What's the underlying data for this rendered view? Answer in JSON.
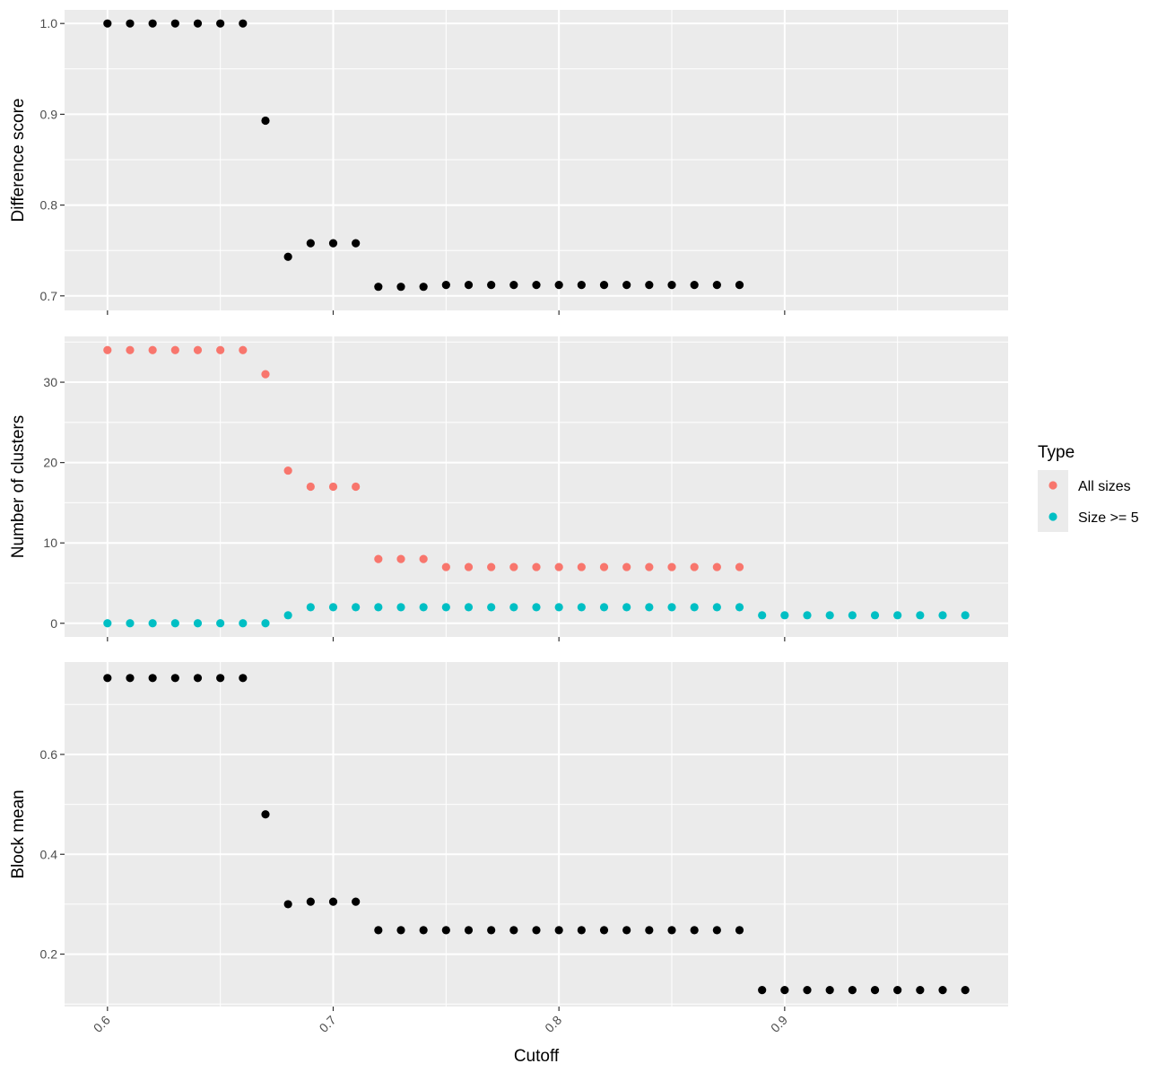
{
  "chart_data": {
    "type": "scatter",
    "xlabel": "Cutoff",
    "xlim": [
      0.581,
      0.999
    ],
    "x_ticks": [
      0.6,
      0.7,
      0.8,
      0.9
    ],
    "x_tick_labels": [
      "0.6",
      "0.7",
      "0.8",
      "0.9"
    ],
    "grid": true,
    "legend": {
      "title": "Type",
      "placement": "right",
      "entries": [
        {
          "name": "All sizes",
          "color": "#F8766D"
        },
        {
          "name": "Size >= 5",
          "color": "#00BFC4"
        }
      ]
    },
    "panels": [
      {
        "id": "difference-score",
        "ylabel": "Difference score",
        "ylim": [
          0.684,
          1.015
        ],
        "y_ticks": [
          0.7,
          0.8,
          0.9,
          1.0
        ],
        "y_tick_labels": [
          "0.7",
          "0.8",
          "0.9",
          "1.0"
        ],
        "series": [
          {
            "color": "#000000",
            "x": [
              0.6,
              0.61,
              0.62,
              0.63,
              0.64,
              0.65,
              0.66,
              0.67,
              0.68,
              0.69,
              0.7,
              0.71,
              0.72,
              0.73,
              0.74,
              0.75,
              0.76,
              0.77,
              0.78,
              0.79,
              0.8,
              0.81,
              0.82,
              0.83,
              0.84,
              0.85,
              0.86,
              0.87,
              0.88
            ],
            "y": [
              1.0,
              1.0,
              1.0,
              1.0,
              1.0,
              1.0,
              1.0,
              0.893,
              0.743,
              0.758,
              0.758,
              0.758,
              0.71,
              0.71,
              0.71,
              0.712,
              0.712,
              0.712,
              0.712,
              0.712,
              0.712,
              0.712,
              0.712,
              0.712,
              0.712,
              0.712,
              0.712,
              0.712,
              0.712
            ]
          }
        ]
      },
      {
        "id": "number-of-clusters",
        "ylabel": "Number of clusters",
        "ylim": [
          -1.7,
          35.7
        ],
        "y_ticks": [
          0,
          10,
          20,
          30
        ],
        "y_tick_labels": [
          "0",
          "10",
          "20",
          "30"
        ],
        "series": [
          {
            "name": "All sizes",
            "color": "#F8766D",
            "x": [
              0.6,
              0.61,
              0.62,
              0.63,
              0.64,
              0.65,
              0.66,
              0.67,
              0.68,
              0.69,
              0.7,
              0.71,
              0.72,
              0.73,
              0.74,
              0.75,
              0.76,
              0.77,
              0.78,
              0.79,
              0.8,
              0.81,
              0.82,
              0.83,
              0.84,
              0.85,
              0.86,
              0.87,
              0.88
            ],
            "y": [
              34,
              34,
              34,
              34,
              34,
              34,
              34,
              31,
              19,
              17,
              17,
              17,
              8,
              8,
              8,
              7,
              7,
              7,
              7,
              7,
              7,
              7,
              7,
              7,
              7,
              7,
              7,
              7,
              7
            ]
          },
          {
            "name": "Size >= 5",
            "color": "#00BFC4",
            "x": [
              0.6,
              0.61,
              0.62,
              0.63,
              0.64,
              0.65,
              0.66,
              0.67,
              0.68,
              0.69,
              0.7,
              0.71,
              0.72,
              0.73,
              0.74,
              0.75,
              0.76,
              0.77,
              0.78,
              0.79,
              0.8,
              0.81,
              0.82,
              0.83,
              0.84,
              0.85,
              0.86,
              0.87,
              0.88,
              0.89,
              0.9,
              0.91,
              0.92,
              0.93,
              0.94,
              0.95,
              0.96,
              0.97,
              0.98
            ],
            "y": [
              0,
              0,
              0,
              0,
              0,
              0,
              0,
              0,
              1,
              2,
              2,
              2,
              2,
              2,
              2,
              2,
              2,
              2,
              2,
              2,
              2,
              2,
              2,
              2,
              2,
              2,
              2,
              2,
              2,
              1,
              1,
              1,
              1,
              1,
              1,
              1,
              1,
              1,
              1
            ]
          }
        ]
      },
      {
        "id": "block-mean",
        "ylabel": "Block mean",
        "ylim": [
          0.095,
          0.785
        ],
        "y_ticks": [
          0.2,
          0.4,
          0.6
        ],
        "y_tick_labels": [
          "0.2",
          "0.4",
          "0.6"
        ],
        "series": [
          {
            "color": "#000000",
            "x": [
              0.6,
              0.61,
              0.62,
              0.63,
              0.64,
              0.65,
              0.66,
              0.67,
              0.68,
              0.69,
              0.7,
              0.71,
              0.72,
              0.73,
              0.74,
              0.75,
              0.76,
              0.77,
              0.78,
              0.79,
              0.8,
              0.81,
              0.82,
              0.83,
              0.84,
              0.85,
              0.86,
              0.87,
              0.88,
              0.89,
              0.9,
              0.91,
              0.92,
              0.93,
              0.94,
              0.95,
              0.96,
              0.97,
              0.98
            ],
            "y": [
              0.753,
              0.753,
              0.753,
              0.753,
              0.753,
              0.753,
              0.753,
              0.48,
              0.3,
              0.305,
              0.305,
              0.305,
              0.248,
              0.248,
              0.248,
              0.248,
              0.248,
              0.248,
              0.248,
              0.248,
              0.248,
              0.248,
              0.248,
              0.248,
              0.248,
              0.248,
              0.248,
              0.248,
              0.248,
              0.128,
              0.128,
              0.128,
              0.128,
              0.128,
              0.128,
              0.128,
              0.128,
              0.128,
              0.128
            ]
          }
        ]
      }
    ]
  }
}
